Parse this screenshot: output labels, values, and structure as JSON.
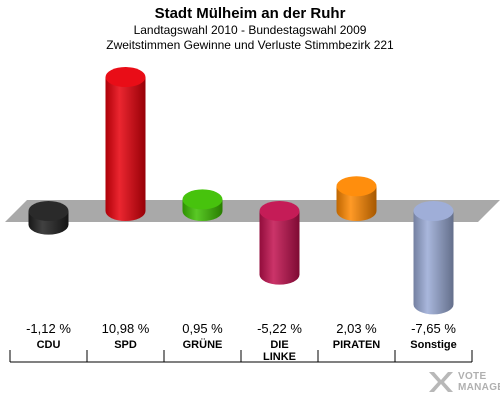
{
  "header": {
    "title": "Stadt Mülheim an der Ruhr",
    "subtitle1": "Landtagswahl 2010 - Bundestagswahl 2009",
    "subtitle2": "Zweitstimmen Gewinne und Verluste Stimmbezirk 221"
  },
  "chart_data": {
    "type": "bar",
    "title": "Stadt Mülheim an der Ruhr",
    "subtitle": "Landtagswahl 2010 - Bundestagswahl 2009 / Zweitstimmen Gewinne und Verluste Stimmbezirk 221",
    "categories": [
      "CDU",
      "SPD",
      "GRÜNE",
      "DIE LINKE",
      "PIRATEN",
      "Sonstige"
    ],
    "values": [
      -1.12,
      10.98,
      0.95,
      -5.22,
      2.03,
      -7.65
    ],
    "value_labels": [
      "-1,12 %",
      "10,98 %",
      "0,95 %",
      "-5,22 %",
      "2,03 %",
      "-7,65 %"
    ],
    "party_labels": [
      "CDU",
      "SPD",
      "GRÜNE",
      "DIE\nLINKE",
      "PIRATEN",
      "Sonstige"
    ],
    "colors": [
      "#1f1f1f",
      "#e8000b",
      "#3dc000",
      "#c2104e",
      "#ff8800",
      "#9aaad6"
    ],
    "xlabel": "",
    "ylabel": ""
  },
  "footer": {
    "brand_line1": "VOTE",
    "brand_line2": "MANAGER"
  }
}
